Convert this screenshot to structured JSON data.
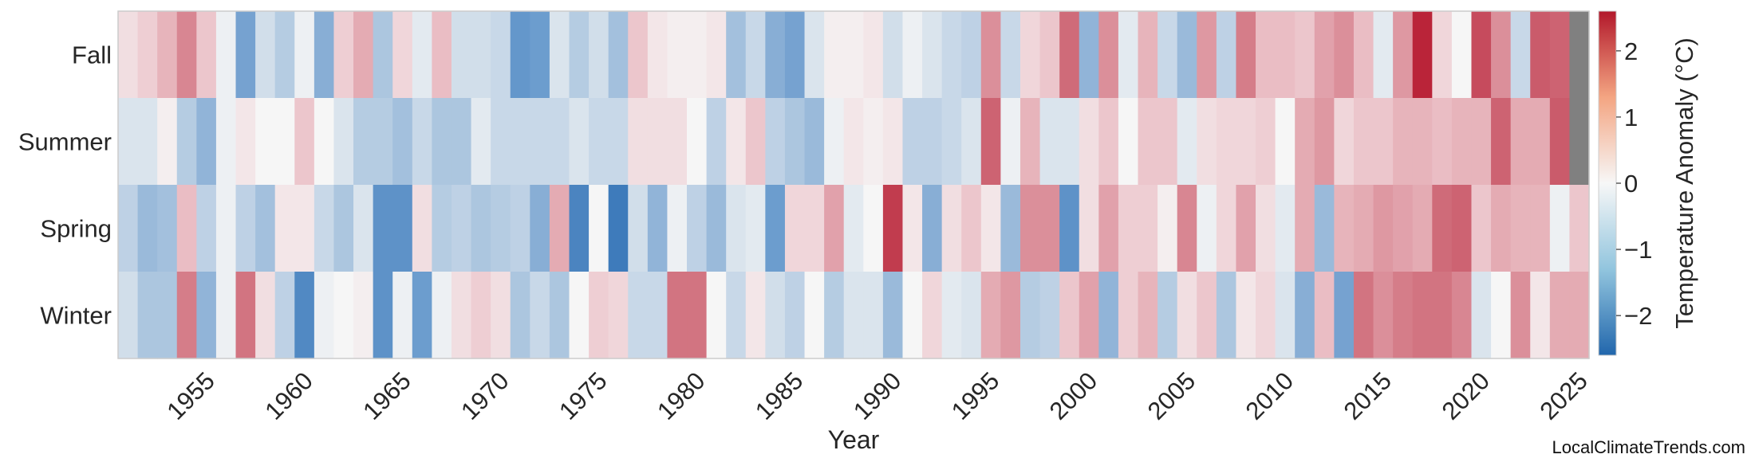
{
  "chart_data": {
    "type": "heatmap",
    "xlabel": "Year",
    "colorbar_label": "Temperature Anomaly (°C)",
    "seasons": [
      "Fall",
      "Summer",
      "Spring",
      "Winter"
    ],
    "year_start": 1951,
    "year_end": 2025,
    "x_ticks": [
      1955,
      1960,
      1965,
      1970,
      1975,
      1980,
      1985,
      1990,
      1995,
      2000,
      2005,
      2010,
      2015,
      2020,
      2025
    ],
    "colorbar_ticks": [
      -2,
      -1,
      0,
      1,
      2
    ],
    "color_range": [
      -2.6,
      2.6
    ],
    "missing_color": "#808080",
    "colorscale": [
      "#2166ac",
      "#f7f7f7",
      "#b2182b"
    ],
    "values": {
      "Fall": [
        0.3,
        0.5,
        0.8,
        1.3,
        0.6,
        -0.1,
        -1.4,
        -0.4,
        -0.7,
        -0.1,
        -1.2,
        0.5,
        0.9,
        -0.8,
        0.4,
        -0.2,
        0.7,
        -0.4,
        -0.4,
        -0.5,
        -1.6,
        -1.5,
        -0.3,
        -0.7,
        -0.4,
        -0.9,
        0.6,
        0.2,
        0.1,
        0.1,
        0.2,
        -0.9,
        -0.5,
        -1.2,
        -1.4,
        -0.3,
        0.1,
        0.1,
        0.2,
        -0.4,
        -0.1,
        -0.3,
        -0.5,
        -0.6,
        1.2,
        -0.5,
        0.4,
        0.6,
        1.6,
        -1.1,
        1.2,
        -0.2,
        0.8,
        -0.5,
        -1.0,
        1.1,
        -0.6,
        1.4,
        0.7,
        0.7,
        0.6,
        1.0,
        1.2,
        0.7,
        -0.2,
        1.1,
        2.5,
        0.4,
        0.0,
        2.0,
        1.2,
        -0.5,
        1.8,
        1.7,
        null
      ],
      "Summer": [
        -0.3,
        -0.3,
        0.1,
        -0.7,
        -1.1,
        -0.1,
        0.2,
        0.0,
        0.0,
        0.6,
        0.0,
        -0.3,
        -0.7,
        -0.7,
        -0.9,
        -0.5,
        -0.8,
        -0.8,
        -0.2,
        -0.5,
        -0.5,
        -0.5,
        -0.5,
        -0.3,
        -0.5,
        -0.5,
        0.3,
        0.3,
        0.3,
        0.0,
        -0.6,
        0.2,
        0.6,
        -0.6,
        -0.8,
        -1.0,
        -0.1,
        0.2,
        0.1,
        0.2,
        -0.6,
        -0.6,
        -0.5,
        -0.3,
        1.7,
        -0.1,
        0.8,
        -0.3,
        -0.3,
        0.3,
        0.6,
        0.0,
        0.6,
        0.6,
        -0.2,
        0.3,
        0.4,
        0.4,
        0.5,
        0.0,
        0.9,
        1.1,
        0.4,
        0.6,
        0.6,
        0.8,
        0.8,
        0.7,
        0.8,
        0.8,
        1.7,
        0.9,
        0.9,
        1.8,
        null
      ],
      "Spring": [
        -0.6,
        -1.0,
        -0.9,
        0.7,
        -0.6,
        -0.1,
        -0.6,
        -0.9,
        0.2,
        0.2,
        -0.5,
        -0.8,
        -0.3,
        -1.7,
        -1.7,
        0.3,
        -0.7,
        -0.6,
        -0.8,
        -0.7,
        -0.6,
        -1.2,
        0.9,
        -2.0,
        0.0,
        -2.2,
        -0.4,
        -1.1,
        -0.1,
        -0.6,
        -1.0,
        -0.3,
        -0.2,
        -1.5,
        0.4,
        0.4,
        1.0,
        -0.2,
        0.0,
        2.2,
        0.2,
        -1.2,
        0.3,
        0.6,
        0.2,
        -1.0,
        1.2,
        1.2,
        -1.7,
        0.3,
        1.0,
        0.5,
        0.5,
        0.1,
        1.3,
        -0.1,
        0.4,
        1.0,
        0.3,
        -0.2,
        0.9,
        -1.0,
        0.8,
        0.9,
        1.1,
        1.0,
        0.9,
        1.6,
        1.7,
        0.6,
        0.9,
        0.8,
        0.8,
        -0.1,
        0.6
      ],
      "Winter": [
        -0.4,
        -0.8,
        -0.8,
        1.4,
        -1.1,
        -0.1,
        1.5,
        0.3,
        -0.6,
        -1.9,
        -0.1,
        0.0,
        0.1,
        -1.7,
        -0.1,
        -1.5,
        -0.1,
        0.3,
        0.5,
        0.3,
        -0.8,
        -0.5,
        -0.8,
        0.0,
        0.5,
        0.4,
        -0.5,
        -0.5,
        1.5,
        1.5,
        0.0,
        -0.5,
        0.2,
        -0.4,
        -0.6,
        0.0,
        -0.7,
        -0.3,
        -0.3,
        -1.0,
        0.0,
        0.4,
        -0.2,
        -0.3,
        0.9,
        1.1,
        -0.7,
        -0.6,
        0.6,
        1.0,
        -1.1,
        0.5,
        0.8,
        -0.7,
        0.3,
        0.6,
        -0.8,
        0.2,
        0.4,
        -0.3,
        -1.2,
        0.7,
        -1.4,
        1.5,
        1.2,
        1.4,
        1.5,
        1.5,
        1.3,
        -0.3,
        0.0,
        1.2,
        0.2,
        0.9,
        0.9
      ]
    },
    "watermark": "LocalClimateTrends.com"
  }
}
